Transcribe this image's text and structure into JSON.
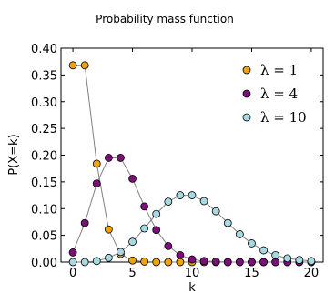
{
  "chart_data": {
    "type": "line",
    "title": "Probability mass function",
    "xlabel": "k",
    "ylabel": "P(X=k)",
    "xlim": [
      -1,
      21
    ],
    "ylim": [
      0.0,
      0.4
    ],
    "x_ticks": [
      "0",
      "5",
      "10",
      "15",
      "20"
    ],
    "x_tick_values": [
      0,
      5,
      10,
      15,
      20
    ],
    "y_ticks": [
      "0.00",
      "0.05",
      "0.10",
      "0.15",
      "0.20",
      "0.25",
      "0.30",
      "0.35",
      "0.40"
    ],
    "y_tick_values": [
      0,
      0.05,
      0.1,
      0.15,
      0.2,
      0.25,
      0.3,
      0.35,
      0.4
    ],
    "grid": false,
    "legend_position": "top-right",
    "x": [
      0,
      1,
      2,
      3,
      4,
      5,
      6,
      7,
      8,
      9,
      10,
      11,
      12,
      13,
      14,
      15,
      16,
      17,
      18,
      19,
      20
    ],
    "series": [
      {
        "name": "λ = 1",
        "color": "#f0a30a",
        "values": [
          0.368,
          0.368,
          0.184,
          0.061,
          0.015,
          0.003,
          0.001,
          0.0,
          0.0,
          0.0,
          0.0,
          0.0,
          0.0,
          0.0,
          0.0,
          0.0,
          0.0,
          0.0,
          0.0,
          0.0,
          0.0
        ]
      },
      {
        "name": "λ = 4",
        "color": "#7d0f7a",
        "values": [
          0.018,
          0.073,
          0.147,
          0.195,
          0.195,
          0.156,
          0.104,
          0.06,
          0.03,
          0.013,
          0.005,
          0.002,
          0.001,
          0.0,
          0.0,
          0.0,
          0.0,
          0.0,
          0.0,
          0.0,
          0.0
        ]
      },
      {
        "name": "λ = 10",
        "color": "#a8d8e2",
        "values": [
          0.0,
          0.0,
          0.002,
          0.008,
          0.019,
          0.038,
          0.063,
          0.09,
          0.113,
          0.125,
          0.125,
          0.114,
          0.095,
          0.073,
          0.052,
          0.035,
          0.022,
          0.013,
          0.007,
          0.004,
          0.002
        ]
      }
    ],
    "legend_labels": [
      "λ = 1",
      "λ = 4",
      "λ = 10"
    ]
  }
}
